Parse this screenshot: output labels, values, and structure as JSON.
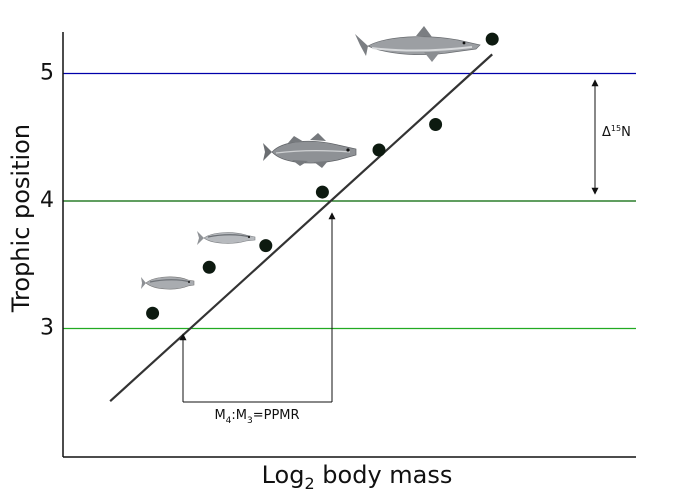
{
  "chart_data": {
    "type": "scatter",
    "xlabel": "Log",
    "xlabel_sub": "2",
    "xlabel_rest": " body mass",
    "ylabel": "Trophic position",
    "ylim": [
      2.0,
      5.3
    ],
    "yticks": [
      "3",
      "4",
      "5"
    ],
    "ytick_values": [
      3,
      4,
      5
    ],
    "xticks": [],
    "grid": false,
    "points": [
      {
        "x": 1,
        "y": 3.12
      },
      {
        "x": 2,
        "y": 3.48
      },
      {
        "x": 3,
        "y": 3.65
      },
      {
        "x": 4,
        "y": 4.07
      },
      {
        "x": 5,
        "y": 4.4
      },
      {
        "x": 6,
        "y": 4.6
      },
      {
        "x": 7,
        "y": 5.27
      }
    ],
    "xlim": [
      0,
      8.5
    ],
    "fit_line": {
      "x": [
        0.25,
        7.0
      ],
      "y": [
        2.43,
        5.15
      ]
    },
    "reference_lines": [
      {
        "y": 5,
        "color": "#0000aa"
      },
      {
        "y": 4,
        "color": "#006400"
      },
      {
        "y": 3,
        "color": "#22aa22"
      }
    ],
    "annotations": {
      "delta_symbol": "Δ",
      "delta_sup": "15",
      "delta_rest": "N",
      "ppmr_m": "M",
      "ppmr_sub1": "4",
      "ppmr_colon": ":M",
      "ppmr_sub2": "3",
      "ppmr_rest": "=PPMR"
    },
    "icons": [
      "sprat-icon",
      "herring-icon",
      "cod-icon",
      "shark-icon"
    ]
  }
}
